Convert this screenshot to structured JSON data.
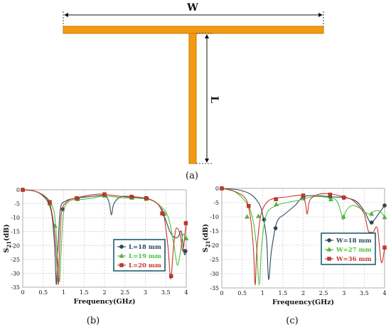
{
  "figure": {
    "panel_a_label": "(a)",
    "panel_b_label": "(b)",
    "panel_c_label": "(c)",
    "dim_w_label": "W",
    "dim_l_label": "L",
    "stub_color": "#f39a10",
    "stub_stroke": "#c77800"
  },
  "chart_data": [
    {
      "type": "line",
      "panel": "b",
      "ylabel_main": "S",
      "ylabel_sub": "21",
      "ylabel_unit": "(dB)",
      "xlabel": "Frequency(GHz)",
      "xlim": [
        0,
        4
      ],
      "ylim": [
        -35,
        0
      ],
      "xticks": [
        "0",
        "0.5",
        "1",
        "1.5",
        "2",
        "2.5",
        "3",
        "3.5",
        "4"
      ],
      "yticks": [
        "0",
        "-5",
        "-10",
        "-15",
        "-20",
        "-25",
        "-30",
        "-35"
      ],
      "xtick_values": [
        0,
        0.5,
        1,
        1.5,
        2,
        2.5,
        3,
        3.5,
        4
      ],
      "ytick_values": [
        0,
        -5,
        -10,
        -15,
        -20,
        -25,
        -30,
        -35
      ],
      "grid": true,
      "legend_position": "center-right",
      "series": [
        {
          "name": "L=18 mm",
          "color": "#2b4a5e",
          "marker": "circle",
          "points": [
            [
              0,
              0
            ],
            [
              0.3,
              -0.5
            ],
            [
              0.55,
              -3
            ],
            [
              0.7,
              -8
            ],
            [
              0.78,
              -20
            ],
            [
              0.82,
              -34
            ],
            [
              0.86,
              -22
            ],
            [
              0.92,
              -7
            ],
            [
              1.05,
              -4
            ],
            [
              1.3,
              -3
            ],
            [
              1.6,
              -2.5
            ],
            [
              1.95,
              -2
            ],
            [
              2.05,
              -2.5
            ],
            [
              2.12,
              -5
            ],
            [
              2.17,
              -9
            ],
            [
              2.23,
              -5
            ],
            [
              2.4,
              -2.5
            ],
            [
              2.7,
              -2.5
            ],
            [
              3.0,
              -3
            ],
            [
              3.2,
              -4
            ],
            [
              3.35,
              -6
            ],
            [
              3.5,
              -11
            ],
            [
              3.6,
              -15
            ],
            [
              3.7,
              -17
            ],
            [
              3.8,
              -17
            ],
            [
              3.88,
              -15
            ],
            [
              3.95,
              -23
            ],
            [
              4.0,
              -22
            ]
          ],
          "markers": [
            [
              0,
              0
            ],
            [
              0.66,
              -5
            ],
            [
              0.98,
              -7
            ],
            [
              1.34,
              -3.2
            ],
            [
              2.0,
              -1.9
            ],
            [
              2.68,
              -2.6
            ],
            [
              3.03,
              -3
            ],
            [
              3.45,
              -8.8
            ],
            [
              3.98,
              -22
            ]
          ]
        },
        {
          "name": "L=19 mm",
          "color": "#4cc23a",
          "marker": "triangle",
          "points": [
            [
              0,
              0
            ],
            [
              0.3,
              -0.5
            ],
            [
              0.6,
              -3
            ],
            [
              0.75,
              -7
            ],
            [
              0.8,
              -12
            ],
            [
              0.86,
              -25
            ],
            [
              0.9,
              -33
            ],
            [
              0.94,
              -22
            ],
            [
              1.0,
              -8
            ],
            [
              1.15,
              -4
            ],
            [
              1.4,
              -3.5
            ],
            [
              1.7,
              -3
            ],
            [
              2.0,
              -2.2
            ],
            [
              2.4,
              -2.8
            ],
            [
              2.8,
              -3
            ],
            [
              3.1,
              -3.5
            ],
            [
              3.3,
              -5
            ],
            [
              3.5,
              -8
            ],
            [
              3.6,
              -12
            ],
            [
              3.7,
              -20
            ],
            [
              3.78,
              -27
            ],
            [
              3.85,
              -23
            ],
            [
              3.92,
              -16
            ],
            [
              4.0,
              -18
            ]
          ],
          "markers": [
            [
              0,
              0
            ],
            [
              0.67,
              -5
            ],
            [
              0.79,
              -13
            ],
            [
              1.34,
              -3.4
            ],
            [
              2.0,
              -2.2
            ],
            [
              2.67,
              -2.9
            ],
            [
              3.02,
              -3.3
            ],
            [
              3.46,
              -8.6
            ],
            [
              4.0,
              -17.5
            ]
          ]
        },
        {
          "name": "L=20 mm",
          "color": "#c8362a",
          "marker": "square",
          "points": [
            [
              0,
              0
            ],
            [
              0.3,
              -0.5
            ],
            [
              0.55,
              -2.5
            ],
            [
              0.68,
              -6
            ],
            [
              0.78,
              -15
            ],
            [
              0.83,
              -25
            ],
            [
              0.87,
              -34
            ],
            [
              0.9,
              -22
            ],
            [
              0.95,
              -8
            ],
            [
              1.1,
              -4
            ],
            [
              1.3,
              -3
            ],
            [
              1.6,
              -2
            ],
            [
              1.9,
              -1.5
            ],
            [
              2.2,
              -2
            ],
            [
              2.5,
              -2.5
            ],
            [
              2.9,
              -2.8
            ],
            [
              3.2,
              -4
            ],
            [
              3.35,
              -6
            ],
            [
              3.45,
              -9
            ],
            [
              3.55,
              -20
            ],
            [
              3.62,
              -32
            ],
            [
              3.68,
              -22
            ],
            [
              3.75,
              -14
            ],
            [
              3.85,
              -16
            ],
            [
              3.92,
              -22
            ],
            [
              4.0,
              -11
            ]
          ],
          "markers": [
            [
              0,
              0
            ],
            [
              0.66,
              -4.4
            ],
            [
              1.32,
              -3
            ],
            [
              2.0,
              -1.6
            ],
            [
              2.66,
              -2.5
            ],
            [
              3.02,
              -3
            ],
            [
              3.41,
              -8.5
            ],
            [
              3.63,
              -31
            ],
            [
              3.99,
              -12
            ]
          ]
        }
      ]
    },
    {
      "type": "line",
      "panel": "c",
      "ylabel_main": "S",
      "ylabel_sub": "21",
      "ylabel_unit": "(dB)",
      "xlabel": "Frequency(GHz)",
      "xlim": [
        0,
        4
      ],
      "ylim": [
        -35,
        0
      ],
      "xticks": [
        "0",
        "0.5",
        "1",
        "1.5",
        "2",
        "2.5",
        "3",
        "3.5",
        "4"
      ],
      "yticks": [
        "0",
        "-5",
        "-10",
        "-15",
        "-20",
        "-25",
        "-30",
        "-35"
      ],
      "xtick_values": [
        0,
        0.5,
        1,
        1.5,
        2,
        2.5,
        3,
        3.5,
        4
      ],
      "ytick_values": [
        0,
        -5,
        -10,
        -15,
        -20,
        -25,
        -30,
        -35
      ],
      "grid": true,
      "legend_position": "bottom-right",
      "series": [
        {
          "name": "W=18 mm",
          "color": "#2b4a5e",
          "marker": "circle",
          "points": [
            [
              0,
              0
            ],
            [
              0.4,
              -0.5
            ],
            [
              0.7,
              -2
            ],
            [
              0.9,
              -5
            ],
            [
              1.0,
              -9
            ],
            [
              1.1,
              -18
            ],
            [
              1.15,
              -32
            ],
            [
              1.22,
              -22
            ],
            [
              1.35,
              -12
            ],
            [
              1.55,
              -9
            ],
            [
              1.8,
              -6
            ],
            [
              2.0,
              -3
            ],
            [
              2.3,
              -2.5
            ],
            [
              2.7,
              -3
            ],
            [
              3.0,
              -3.2
            ],
            [
              3.3,
              -4.5
            ],
            [
              3.5,
              -8
            ],
            [
              3.65,
              -12
            ],
            [
              3.75,
              -11
            ],
            [
              3.85,
              -9
            ],
            [
              4.0,
              -6
            ]
          ],
          "markers": [
            [
              0,
              0
            ],
            [
              1.04,
              -11
            ],
            [
              1.32,
              -14
            ],
            [
              2.0,
              -3.2
            ],
            [
              2.66,
              -3
            ],
            [
              3.0,
              -3.3
            ],
            [
              3.68,
              -12
            ],
            [
              4.0,
              -6
            ]
          ]
        },
        {
          "name": "W=27 mm",
          "color": "#4cc23a",
          "marker": "triangle",
          "points": [
            [
              0,
              0
            ],
            [
              0.3,
              -1
            ],
            [
              0.6,
              -5
            ],
            [
              0.75,
              -10
            ],
            [
              0.85,
              -20
            ],
            [
              0.92,
              -34
            ],
            [
              0.98,
              -20
            ],
            [
              1.1,
              -9
            ],
            [
              1.35,
              -6
            ],
            [
              1.6,
              -5
            ],
            [
              1.95,
              -4
            ],
            [
              2.2,
              -3
            ],
            [
              2.5,
              -3
            ],
            [
              2.8,
              -4
            ],
            [
              2.92,
              -8
            ],
            [
              2.98,
              -11
            ],
            [
              3.05,
              -8
            ],
            [
              3.2,
              -6
            ],
            [
              3.4,
              -7
            ],
            [
              3.6,
              -9
            ],
            [
              3.75,
              -8
            ],
            [
              3.88,
              -8
            ],
            [
              4.0,
              -10
            ]
          ],
          "markers": [
            [
              0,
              0
            ],
            [
              0.62,
              -10
            ],
            [
              0.9,
              -9.8
            ],
            [
              1.34,
              -5.6
            ],
            [
              2.0,
              -3.5
            ],
            [
              2.68,
              -3.9
            ],
            [
              2.99,
              -10
            ],
            [
              3.68,
              -9
            ],
            [
              4.0,
              -10.2
            ]
          ]
        },
        {
          "name": "W=36 mm",
          "color": "#c8362a",
          "marker": "square",
          "points": [
            [
              0,
              0
            ],
            [
              0.3,
              -1
            ],
            [
              0.55,
              -3
            ],
            [
              0.65,
              -6
            ],
            [
              0.72,
              -12
            ],
            [
              0.78,
              -22
            ],
            [
              0.82,
              -34
            ],
            [
              0.86,
              -22
            ],
            [
              0.95,
              -10
            ],
            [
              1.1,
              -5
            ],
            [
              1.3,
              -3.5
            ],
            [
              1.6,
              -3
            ],
            [
              1.95,
              -2.5
            ],
            [
              2.05,
              -5
            ],
            [
              2.1,
              -9
            ],
            [
              2.17,
              -4
            ],
            [
              2.4,
              -2
            ],
            [
              2.7,
              -2
            ],
            [
              3.0,
              -3
            ],
            [
              3.2,
              -4
            ],
            [
              3.35,
              -6
            ],
            [
              3.5,
              -9
            ],
            [
              3.6,
              -15
            ],
            [
              3.7,
              -16
            ],
            [
              3.82,
              -14
            ],
            [
              3.92,
              -26
            ],
            [
              4.0,
              -21
            ]
          ],
          "markers": [
            [
              0,
              0
            ],
            [
              0.66,
              -6.2
            ],
            [
              1.33,
              -3.8
            ],
            [
              2.0,
              -2.5
            ],
            [
              2.66,
              -2.2
            ],
            [
              3.0,
              -3.2
            ],
            [
              3.66,
              -16
            ],
            [
              4.0,
              -20.8
            ]
          ]
        }
      ]
    }
  ]
}
